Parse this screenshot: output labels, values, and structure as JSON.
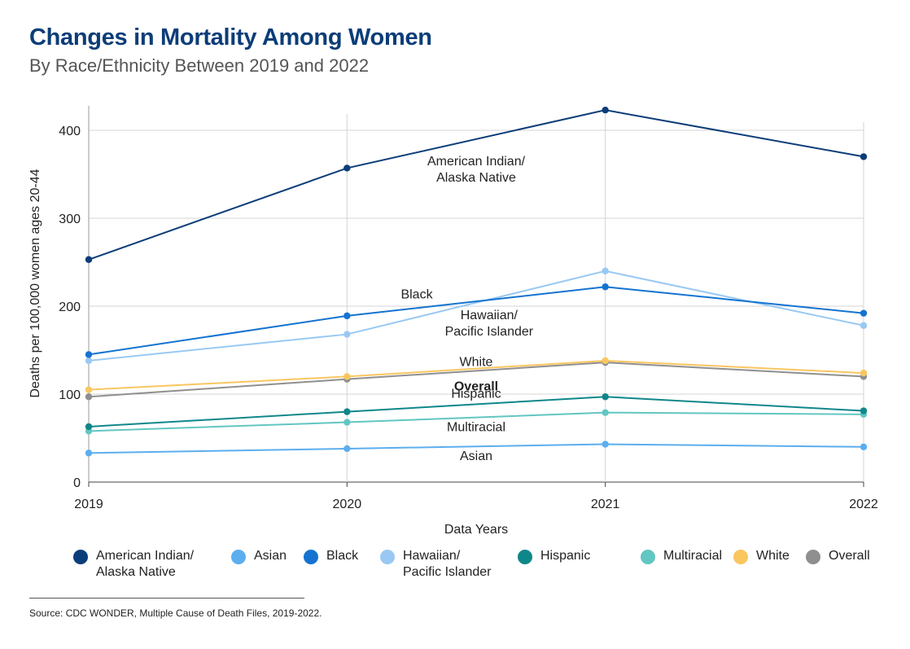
{
  "title": "Changes in Mortality Among Women",
  "subtitle": "By Race/Ethnicity Between 2019 and 2022",
  "source": "Source: CDC WONDER, Multiple Cause of Death Files, 2019-2022.",
  "chart_data": {
    "type": "line",
    "title": "Changes in Mortality Among Women",
    "xlabel": "Data Years",
    "ylabel": "Deaths per 100,000 women ages 20-44",
    "categories": [
      "2019",
      "2020",
      "2021",
      "2022"
    ],
    "ylim": [
      0,
      420
    ],
    "yticks": [
      0,
      100,
      200,
      300,
      400
    ],
    "grid": true,
    "series": [
      {
        "name": "American Indian/\nAlaska Native",
        "label": "American Indian/\nAlaska Native",
        "color": "#0b3d78",
        "values": [
          253,
          357,
          423,
          370
        ]
      },
      {
        "name": "Black",
        "label": "Black",
        "color": "#1473d0",
        "values": [
          145,
          189,
          222,
          192
        ]
      },
      {
        "name": "Hawaiian/\nPacific Islander",
        "label": "Hawaiian/\nPacific Islander",
        "color": "#99c9f3",
        "values": [
          138,
          168,
          240,
          178
        ]
      },
      {
        "name": "White",
        "label": "White",
        "color": "#f9c660",
        "values": [
          105,
          120,
          138,
          124
        ]
      },
      {
        "name": "Overall",
        "label": "Overall",
        "color": "#8f8f8f",
        "values": [
          97,
          117,
          136,
          120
        ]
      },
      {
        "name": "Hispanic",
        "label": "Hispanic",
        "color": "#0f878a",
        "values": [
          63,
          80,
          97,
          81
        ]
      },
      {
        "name": "Multiracial",
        "label": "Multiracial",
        "color": "#62c6c2",
        "values": [
          58,
          68,
          79,
          77
        ]
      },
      {
        "name": "Asian",
        "label": "Asian",
        "color": "#5caeee",
        "values": [
          33,
          38,
          43,
          40
        ]
      }
    ]
  },
  "legend": [
    {
      "label": "American Indian/\nAlaska Native",
      "color": "#0b3d78"
    },
    {
      "label": "Asian",
      "color": "#5caeee"
    },
    {
      "label": "Black",
      "color": "#1473d0"
    },
    {
      "label": "Hawaiian/\nPacific Islander",
      "color": "#99c9f3"
    },
    {
      "label": "Hispanic",
      "color": "#0f878a"
    },
    {
      "label": "Multiracial",
      "color": "#62c6c2"
    },
    {
      "label": "White",
      "color": "#f9c660"
    },
    {
      "label": "Overall",
      "color": "#8f8f8f"
    }
  ]
}
